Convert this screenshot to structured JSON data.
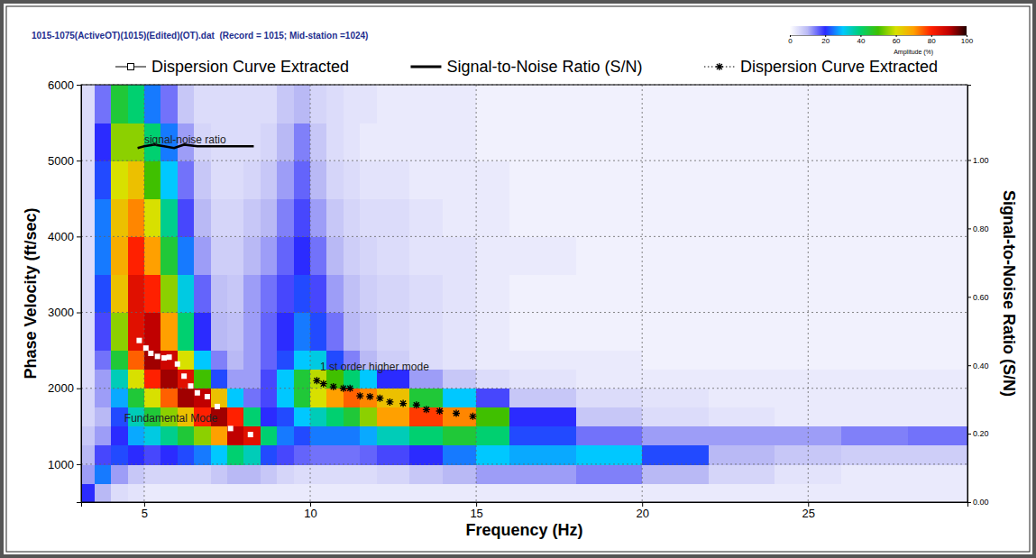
{
  "chart_data": {
    "type": "heatmap",
    "title": "1015-1075(ActiveOT)(1015)(Edited)(OT).dat  (Record = 1015; Mid-station =1024)",
    "x_label": "Frequency (Hz)",
    "y_label": "Phase Velocity (ft/sec)",
    "y2_label": "Signal-to-Noise Ratio (S/N)",
    "xlim": [
      3.1,
      29.8
    ],
    "xticks": [
      5,
      10,
      15,
      20,
      25
    ],
    "ylim": [
      500,
      6000
    ],
    "yticks": [
      1000,
      2000,
      3000,
      4000,
      5000,
      6000
    ],
    "y2lim": [
      0,
      1.22
    ],
    "y2ticks": [
      {
        "value": 0,
        "label": "0.00"
      },
      {
        "value": 0.2,
        "label": "0.20"
      },
      {
        "value": 0.4,
        "label": "0.40"
      },
      {
        "value": 0.6,
        "label": "0.60"
      },
      {
        "value": 0.8,
        "label": "0.80"
      },
      {
        "value": 1,
        "label": "1.00"
      }
    ],
    "grid": true,
    "legend": "top",
    "heatmap": {
      "x_bins": [
        3,
        3.5,
        4,
        4.5,
        5,
        5.5,
        6,
        6.5,
        7,
        7.5,
        8,
        8.5,
        9,
        9.5,
        10,
        10.5,
        11,
        11.5,
        12,
        13,
        14,
        15,
        16,
        18,
        20,
        22,
        24,
        26,
        28,
        30
      ],
      "y_bins": [
        500,
        750,
        1000,
        1250,
        1500,
        1750,
        2000,
        2250,
        2500,
        3000,
        3500,
        4000,
        4500,
        5000,
        5500,
        6000
      ],
      "cells": [
        [
          20,
          10,
          5,
          4,
          3,
          3,
          3,
          3,
          3,
          3,
          3,
          3,
          3,
          3,
          3,
          3,
          3,
          3,
          3,
          3,
          3,
          3,
          3,
          3,
          3,
          3,
          3,
          3,
          3
        ],
        [
          12,
          25,
          12,
          8,
          6,
          6,
          6,
          6,
          8,
          10,
          10,
          8,
          6,
          5,
          5,
          5,
          5,
          5,
          6,
          8,
          10,
          12,
          12,
          14,
          10,
          6,
          4,
          3,
          3
        ],
        [
          10,
          18,
          22,
          20,
          18,
          20,
          22,
          25,
          30,
          40,
          35,
          22,
          18,
          16,
          15,
          15,
          15,
          16,
          18,
          20,
          25,
          30,
          28,
          30,
          22,
          10,
          8,
          7,
          7
        ],
        [
          8,
          12,
          20,
          28,
          32,
          38,
          45,
          55,
          70,
          90,
          85,
          40,
          25,
          22,
          25,
          25,
          25,
          28,
          35,
          40,
          45,
          40,
          22,
          15,
          12,
          12,
          12,
          14,
          15
        ],
        [
          6,
          10,
          22,
          35,
          45,
          55,
          65,
          80,
          92,
          80,
          40,
          20,
          22,
          30,
          35,
          40,
          45,
          55,
          70,
          78,
          72,
          50,
          20,
          8,
          5,
          4,
          3,
          3,
          3
        ],
        [
          6,
          12,
          28,
          45,
          60,
          75,
          92,
          90,
          65,
          30,
          15,
          18,
          30,
          45,
          60,
          70,
          75,
          72,
          65,
          45,
          30,
          18,
          8,
          5,
          4,
          3,
          3,
          3,
          3
        ],
        [
          5,
          12,
          35,
          60,
          80,
          92,
          85,
          50,
          22,
          12,
          12,
          18,
          30,
          45,
          58,
          50,
          40,
          30,
          20,
          12,
          8,
          5,
          4,
          3,
          3,
          3,
          3,
          3,
          3
        ],
        [
          5,
          15,
          45,
          75,
          92,
          88,
          60,
          30,
          14,
          10,
          12,
          16,
          22,
          30,
          32,
          22,
          14,
          10,
          7,
          5,
          4,
          3,
          3,
          3,
          2,
          2,
          2,
          2,
          2
        ],
        [
          5,
          18,
          55,
          85,
          90,
          70,
          40,
          20,
          10,
          9,
          12,
          16,
          20,
          25,
          22,
          15,
          10,
          8,
          6,
          5,
          4,
          3,
          2,
          2,
          2,
          2,
          2,
          2,
          2
        ],
        [
          5,
          22,
          65,
          85,
          80,
          55,
          32,
          16,
          9,
          8,
          12,
          15,
          18,
          22,
          18,
          12,
          9,
          7,
          6,
          5,
          4,
          3,
          2,
          2,
          2,
          2,
          2,
          2,
          2
        ],
        [
          5,
          25,
          68,
          80,
          70,
          45,
          25,
          12,
          7,
          7,
          10,
          12,
          16,
          20,
          15,
          10,
          7,
          6,
          5,
          4,
          4,
          3,
          3,
          2,
          2,
          2,
          2,
          2,
          2
        ],
        [
          5,
          25,
          65,
          72,
          60,
          38,
          18,
          10,
          6,
          6,
          8,
          10,
          14,
          18,
          12,
          8,
          6,
          5,
          5,
          4,
          3,
          3,
          2,
          2,
          2,
          2,
          2,
          2,
          2
        ],
        [
          5,
          22,
          60,
          65,
          50,
          30,
          15,
          8,
          5,
          5,
          6,
          8,
          12,
          16,
          10,
          6,
          5,
          4,
          4,
          3,
          3,
          3,
          2,
          2,
          2,
          2,
          2,
          2,
          2
        ],
        [
          5,
          20,
          55,
          55,
          40,
          25,
          12,
          6,
          5,
          5,
          5,
          6,
          10,
          14,
          8,
          5,
          4,
          3,
          3,
          3,
          3,
          2,
          2,
          2,
          2,
          2,
          2,
          2,
          2
        ],
        [
          5,
          15,
          45,
          40,
          25,
          15,
          8,
          5,
          5,
          5,
          5,
          5,
          8,
          10,
          6,
          5,
          4,
          4,
          3,
          3,
          3,
          2,
          2,
          2,
          2,
          2,
          2,
          2,
          2
        ]
      ]
    },
    "colorbar": {
      "label": "Amplitude (%)",
      "range": [
        0,
        100
      ],
      "ticks": [
        0,
        20,
        40,
        60,
        80,
        100
      ],
      "colors": [
        "#ffffff",
        "#b9b9f5",
        "#2b2bff",
        "#00c8ff",
        "#00d070",
        "#40c000",
        "#d8e000",
        "#ffa000",
        "#ff2000",
        "#c00000",
        "#200000"
      ]
    },
    "series": [
      {
        "name": "Dispersion Curve Extracted",
        "type": "scatter",
        "marker": "square",
        "color": "#ffffff",
        "x": [
          4.85,
          5.05,
          5.2,
          5.4,
          5.6,
          5.75,
          6.0,
          6.2,
          6.4,
          6.6,
          6.9,
          7.2,
          7.6,
          8.2
        ],
        "values": [
          2630,
          2530,
          2460,
          2420,
          2400,
          2410,
          2320,
          2160,
          2030,
          1940,
          1890,
          1760,
          1470,
          1390
        ]
      },
      {
        "name": "Signal-to-Noise Ratio (S/N)",
        "type": "line",
        "line_style": "solid",
        "color": "#000000",
        "axis": "y2",
        "x": [
          4.8,
          5.0,
          5.3,
          5.6,
          5.9,
          6.2,
          6.6,
          7.0,
          7.5,
          8.3
        ],
        "values": [
          1.035,
          1.04,
          1.045,
          1.04,
          1.035,
          1.045,
          1.04,
          1.04,
          1.04,
          1.04
        ]
      },
      {
        "name": "Dispersion Curve Extracted",
        "type": "scatter",
        "marker": "asterisk",
        "color": "#000000",
        "x": [
          10.2,
          10.4,
          10.7,
          11.0,
          11.2,
          11.5,
          11.8,
          12.1,
          12.4,
          12.8,
          13.2,
          13.5,
          13.9,
          14.4,
          14.9
        ],
        "values": [
          2100,
          2060,
          2020,
          2000,
          2000,
          1900,
          1890,
          1870,
          1820,
          1800,
          1780,
          1720,
          1700,
          1670,
          1630
        ]
      }
    ],
    "annotations": [
      {
        "text": "signal-noise ratio",
        "x": 5.0,
        "y": 5230
      },
      {
        "text": "1 st order higher mode",
        "x": 10.3,
        "y": 2230
      },
      {
        "text": "Fundamental Mode",
        "x": 4.4,
        "y": 1560
      }
    ]
  }
}
